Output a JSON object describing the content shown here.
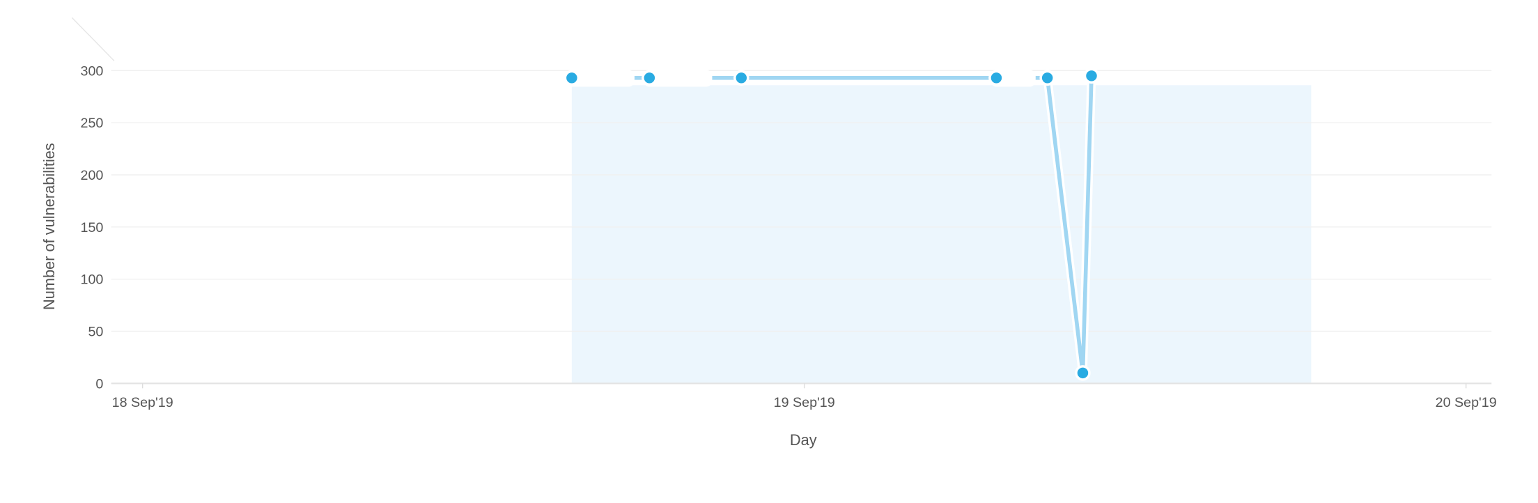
{
  "chart_data": {
    "type": "line",
    "title": "",
    "xlabel": "Day",
    "ylabel": "Number of vulnerabilities",
    "ylim": [
      0,
      300
    ],
    "yticks": [
      "0",
      "50",
      "100",
      "150",
      "200",
      "250",
      "300"
    ],
    "xlim": [
      "2019-09-17T23:00",
      "2019-09-20T01:00"
    ],
    "xticks": [
      {
        "label": "18 Sep'19",
        "date": "2019-09-18T00:00"
      },
      {
        "label": "19 Sep'19",
        "date": "2019-09-19T00:00"
      },
      {
        "label": "20 Sep'19",
        "date": "2019-09-20T00:00"
      }
    ],
    "grid": true,
    "series": [
      {
        "color": "#29abe2",
        "line_color": "#a0d6f2",
        "points": [
          {
            "x": "2019-09-18T15:34",
            "y": 293
          },
          {
            "x": "2019-09-18T18:23",
            "y": 293
          },
          {
            "x": "2019-09-18T21:43",
            "y": 293
          },
          {
            "x": "2019-09-19T06:58",
            "y": 293
          },
          {
            "x": "2019-09-19T08:49",
            "y": 293
          },
          {
            "x": "2019-09-19T10:06",
            "y": 10
          },
          {
            "x": "2019-09-19T10:25",
            "y": 295
          }
        ]
      }
    ],
    "plot_band": {
      "from": "2019-09-18T15:34",
      "to": "2019-09-19T18:23",
      "y": 286,
      "color": "#ecf6fd"
    }
  }
}
